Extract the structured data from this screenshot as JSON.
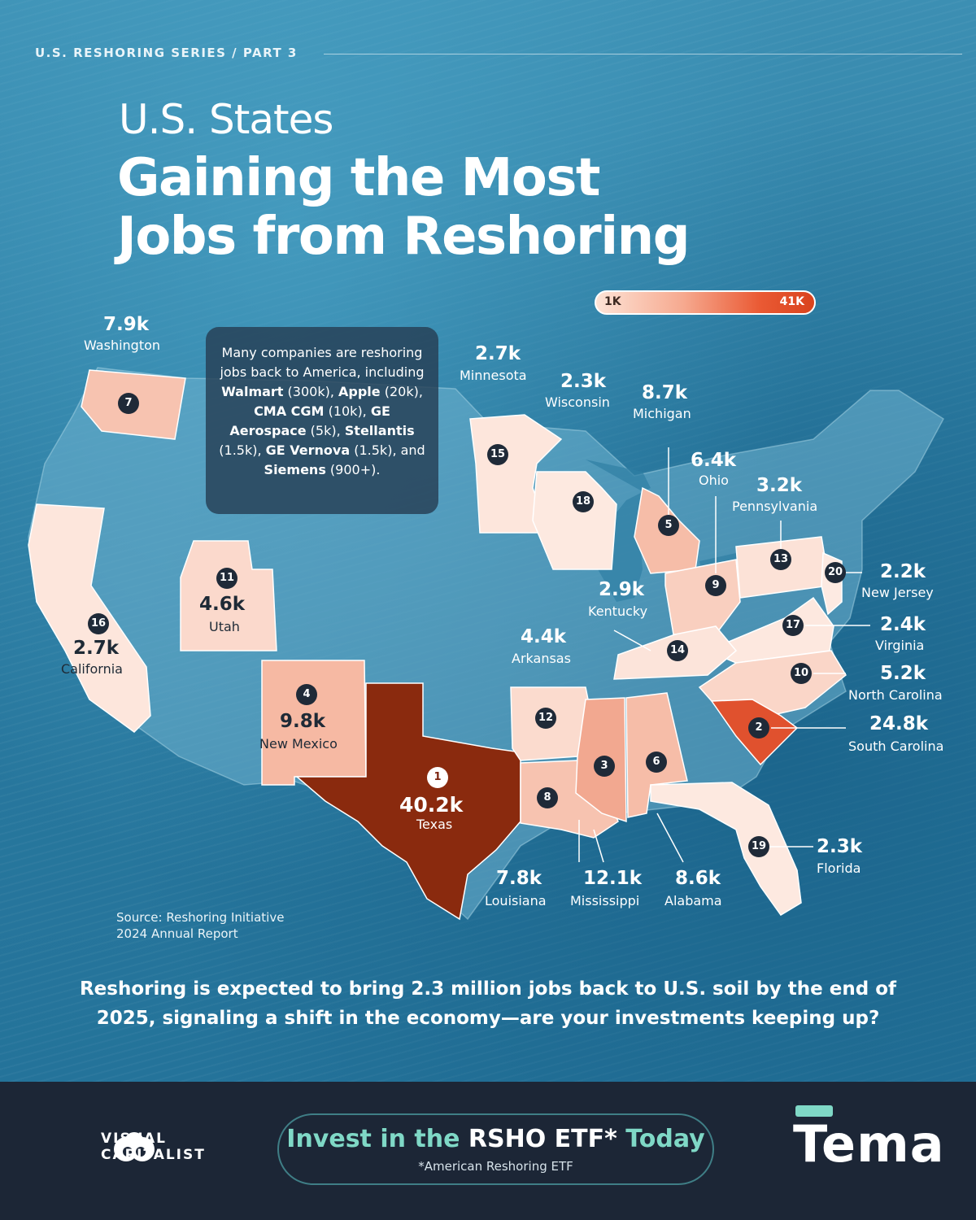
{
  "header": {
    "series": "U.S. RESHORING SERIES / PART 3",
    "title_line1": "U.S. States",
    "title_line2": "Gaining the Most",
    "title_line3": "Jobs from Reshoring"
  },
  "legend": {
    "min_label": "1K",
    "max_label": "41K",
    "min_color": "#fde3d6",
    "max_color": "#d9431d"
  },
  "callout": {
    "p1": "Many companies are reshoring jobs back to America, including ",
    "walmart": "Walmart",
    "walmart_n": " (300k), ",
    "apple": "Apple",
    "apple_n": " (20k), ",
    "cma": "CMA CGM",
    "cma_n": " (10k), ",
    "ge": "GE Aerospace",
    "ge_n": " (5k), ",
    "stellantis": "Stellantis",
    "stellantis_n": " (1.5k), ",
    "vernova": "GE Vernova",
    "vernova_n": " (1.5k), and ",
    "siemens": "Siemens",
    "siemens_n": " (900+)."
  },
  "states": [
    {
      "rank": "1",
      "name": "Texas",
      "value": "40.2k",
      "jobs_k": 40.2,
      "color": "#8a2a0e"
    },
    {
      "rank": "2",
      "name": "South Carolina",
      "value": "24.8k",
      "jobs_k": 24.8,
      "color": "#e0512e"
    },
    {
      "rank": "3",
      "name": "Mississippi",
      "value": "12.1k",
      "jobs_k": 12.1,
      "color": "#f2a890"
    },
    {
      "rank": "4",
      "name": "New Mexico",
      "value": "9.8k",
      "jobs_k": 9.8,
      "color": "#f6b9a3"
    },
    {
      "rank": "5",
      "name": "Michigan",
      "value": "8.7k",
      "jobs_k": 8.7,
      "color": "#f6bda8"
    },
    {
      "rank": "6",
      "name": "Alabama",
      "value": "8.6k",
      "jobs_k": 8.6,
      "color": "#f6bda8"
    },
    {
      "rank": "7",
      "name": "Washington",
      "value": "7.9k",
      "jobs_k": 7.9,
      "color": "#f7c3b0"
    },
    {
      "rank": "8",
      "name": "Louisiana",
      "value": "7.8k",
      "jobs_k": 7.8,
      "color": "#f7c3b0"
    },
    {
      "rank": "9",
      "name": "Ohio",
      "value": "6.4k",
      "jobs_k": 6.4,
      "color": "#f9cfbf"
    },
    {
      "rank": "10",
      "name": "North Carolina",
      "value": "5.2k",
      "jobs_k": 5.2,
      "color": "#fad6c8"
    },
    {
      "rank": "11",
      "name": "Utah",
      "value": "4.6k",
      "jobs_k": 4.6,
      "color": "#fbd9cc"
    },
    {
      "rank": "12",
      "name": "Arkansas",
      "value": "4.4k",
      "jobs_k": 4.4,
      "color": "#fbdbce"
    },
    {
      "rank": "13",
      "name": "Pennsylvania",
      "value": "3.2k",
      "jobs_k": 3.2,
      "color": "#fce2d7"
    },
    {
      "rank": "14",
      "name": "Kentucky",
      "value": "2.9k",
      "jobs_k": 2.9,
      "color": "#fce4da"
    },
    {
      "rank": "15",
      "name": "Minnesota",
      "value": "2.7k",
      "jobs_k": 2.7,
      "color": "#fde6dc"
    },
    {
      "rank": "16",
      "name": "California",
      "value": "2.7k",
      "jobs_k": 2.7,
      "color": "#fde6dc"
    },
    {
      "rank": "17",
      "name": "Virginia",
      "value": "2.4k",
      "jobs_k": 2.4,
      "color": "#fde8df"
    },
    {
      "rank": "18",
      "name": "Wisconsin",
      "value": "2.3k",
      "jobs_k": 2.3,
      "color": "#fde9e0"
    },
    {
      "rank": "19",
      "name": "Florida",
      "value": "2.3k",
      "jobs_k": 2.3,
      "color": "#fde9e0"
    },
    {
      "rank": "20",
      "name": "New Jersey",
      "value": "2.2k",
      "jobs_k": 2.2,
      "color": "#fdeae2"
    }
  ],
  "source": {
    "line1": "Source: Reshoring Initiative",
    "line2": "2024 Annual Report"
  },
  "bottom_text": "Reshoring is expected to bring 2.3 million jobs back to U.S. soil by the end of 2025, signaling a shift in the economy—are your investments keeping up?",
  "footer": {
    "vc_line1": "VISUAL",
    "vc_line2": "CAPITALIST",
    "cta_prefix": "Invest in the ",
    "cta_fund": "RSHO ETF*",
    "cta_suffix": " Today",
    "cta_sub": "*American Reshoring ETF",
    "partner": "Tema",
    "accent": "#7fd8c6"
  }
}
